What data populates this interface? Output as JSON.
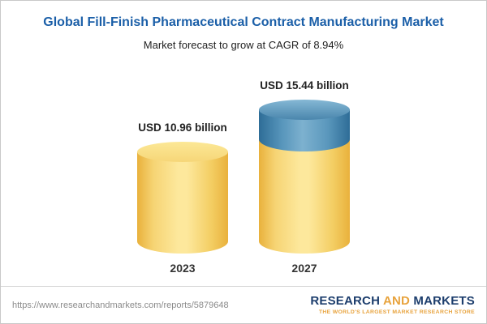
{
  "header": {
    "title": "Global Fill-Finish Pharmaceutical Contract Manufacturing Market",
    "subtitle": "Market forecast to grow at CAGR of 8.94%"
  },
  "chart_data": {
    "type": "bar",
    "variant": "3d-cylinder",
    "categories": [
      "2023",
      "2027"
    ],
    "values": [
      10.96,
      15.44
    ],
    "value_labels": [
      "USD 10.96 billion",
      "USD 15.44 billion"
    ],
    "unit": "USD billion",
    "cagr": "8.94%",
    "stacked_2027": {
      "base": 10.96,
      "growth": 4.48
    },
    "legend_position": "none",
    "grid": false,
    "colors": {
      "base_segment": "#F5D06A",
      "growth_segment": "#4A86AD",
      "title_text": "#1B5FA8"
    }
  },
  "footer": {
    "url": "https://www.researchandmarkets.com/reports/5879648",
    "logo": {
      "word1": "RESEARCH",
      "word2": "AND",
      "word3": "MARKETS",
      "tagline": "THE WORLD'S LARGEST MARKET RESEARCH STORE"
    }
  }
}
